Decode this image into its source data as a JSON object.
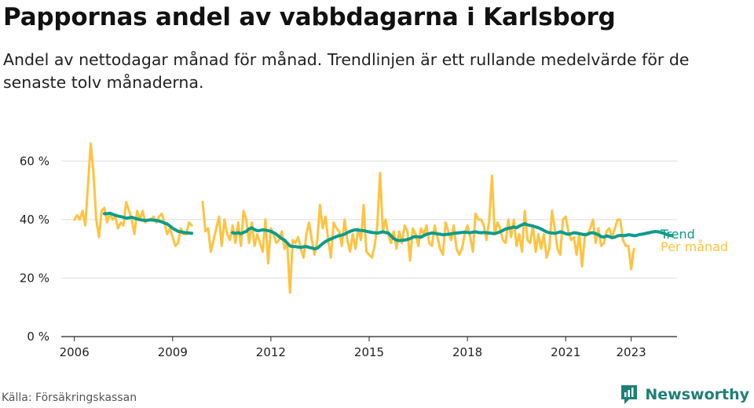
{
  "title": "Pappornas andel av vabbdagarna i Karlsborg",
  "subtitle": "Andel av nettodagar månad för månad. Trendlinjen är ett rullande medelvärde för de senaste tolv månaderna.",
  "source": "Källa: Försäkringskassan",
  "brand": "Newsworthy",
  "colors": {
    "monthly": "#ffc340",
    "trend": "#0d9c8b",
    "grid": "#dddddd",
    "brand": "#1f7f75"
  },
  "chart_data": {
    "type": "line",
    "x_ticks": [
      "2006",
      "2009",
      "2012",
      "2015",
      "2018",
      "2021",
      "2023"
    ],
    "x_tick_values": [
      2006,
      2009,
      2012,
      2015,
      2018,
      2021,
      2023
    ],
    "xlim": [
      2005.6,
      2024.4
    ],
    "y_ticks": [
      "0 %",
      "20 %",
      "40 %",
      "60 %"
    ],
    "y_tick_values": [
      0,
      20,
      40,
      60
    ],
    "ylim": [
      0,
      70
    ],
    "grid": true,
    "series": [
      {
        "name": "Per månad",
        "color": "#ffc340",
        "start": 2006.0,
        "step": 0.0833333,
        "segments": [
          {
            "start_index": 0,
            "values": [
              40,
              41.5,
              40,
              43,
              38,
              52,
              66,
              56,
              40,
              34,
              43,
              44,
              39,
              42,
              40,
              41,
              37,
              39,
              38,
              46,
              43,
              40,
              35,
              43,
              40,
              43,
              39,
              40,
              40,
              41,
              39,
              41,
              42,
              39,
              35,
              37,
              34,
              31,
              32,
              37,
              35,
              35,
              39,
              38
            ]
          },
          {
            "start_index": 47,
            "values": [
              46,
              36,
              37,
              29,
              33,
              37,
              41,
              31,
              40,
              35,
              33,
              38,
              32,
              39,
              31,
              43,
              40,
              32,
              39,
              31,
              35,
              32,
              29,
              40,
              25,
              37,
              35,
              32,
              33,
              36,
              30,
              32,
              15,
              33,
              32,
              34,
              30,
              27,
              35,
              39,
              33,
              28,
              33,
              45,
              37,
              41,
              33,
              27,
              39,
              37,
              36,
              31,
              40,
              33,
              29,
              35,
              30,
              37,
              33,
              45,
              29,
              28,
              27,
              31,
              38,
              56,
              36,
              40,
              35,
              32,
              36,
              30,
              36,
              32,
              38,
              36,
              26,
              37,
              35,
              31,
              37,
              35,
              38,
              32,
              31,
              38,
              34,
              30,
              28,
              39,
              36,
              33,
              38,
              30,
              28,
              30,
              35,
              38,
              34,
              29,
              42,
              40,
              40,
              38,
              33,
              40,
              55,
              35,
              39,
              37,
              33,
              32,
              40,
              34,
              40,
              31,
              35,
              29,
              43,
              33,
              32,
              38,
              29,
              35,
              30,
              35,
              27,
              30,
              43,
              37,
              30,
              28,
              40,
              41,
              36,
              33,
              34,
              28,
              35,
              24,
              34,
              35,
              37,
              40,
              32,
              37,
              31,
              32,
              36,
              37,
              34,
              37,
              40,
              40,
              33,
              31,
              31,
              23,
              30
            ]
          }
        ]
      },
      {
        "name": "Trend",
        "color": "#0d9c8b",
        "start": 2006.0,
        "step": 0.0833333,
        "segments": [
          {
            "start_index": 11,
            "values": [
              42,
              42,
              42.2,
              41.8,
              41.5,
              41.2,
              41,
              40.8,
              40.5,
              40.6,
              40.8,
              40.5,
              40.2,
              40,
              39.8,
              39.7,
              39.8,
              39.9,
              39.8,
              39.7,
              39.5,
              39.2,
              38.8,
              38.5,
              37.8,
              37,
              36.5,
              36,
              35.8,
              35.6,
              35.5,
              35.4,
              35.3
            ]
          },
          {
            "start_index": 58,
            "values": [
              35.5,
              35.3,
              35.5,
              35.2,
              35.6,
              36,
              36.8,
              37.2,
              36.6,
              36.2,
              36.3,
              36.5,
              36.4,
              36.2,
              36,
              35.5,
              35,
              34.2,
              33.5,
              33,
              32,
              31,
              30.8,
              30.8,
              30.6,
              30.5,
              30.7,
              30.8,
              30.5,
              30.3,
              30,
              30.2,
              31,
              31.8,
              32.5,
              33,
              33.4,
              33.8,
              34.2,
              34.5,
              34.7,
              35,
              35.5,
              36,
              36.3,
              36.5,
              36.4,
              36.3,
              36.2,
              36,
              35.8,
              35.6,
              35.5,
              35.4,
              35.6,
              35.8,
              35.6,
              35.4,
              34.5,
              33.5,
              33,
              32.8,
              32.9,
              33,
              33.2,
              33.5,
              34,
              34.2,
              34.1,
              34,
              34.5,
              35,
              35.2,
              35.4,
              35.3,
              35.1,
              35,
              34.8,
              34.9,
              35,
              35.1,
              35.3,
              35.4,
              35.5,
              35.6,
              35.7,
              35.6,
              35.5,
              35.7,
              35.8,
              35.6,
              35.5,
              35.6,
              35.5,
              35.4,
              35.3,
              35.2,
              35.5,
              35.8,
              36.3,
              36.8,
              37,
              37.2,
              37.5,
              37.2,
              37.8,
              38.2,
              38.6,
              38.2,
              38,
              37.8,
              37.5,
              37.2,
              36.8,
              36.3,
              35.8,
              35.5,
              35.4,
              35.3,
              35.5,
              35.8,
              35.6,
              35.2,
              35,
              35.2,
              35.5,
              35.4,
              35.2,
              35,
              34.8,
              35,
              35.4,
              35.5,
              35.2,
              34.8,
              34.2,
              34,
              34.4,
              34.2,
              33.8,
              34,
              34.4,
              34.6,
              34.5,
              34.6,
              34.8,
              34.7,
              34.5,
              34.6,
              34.9,
              35,
              35.2,
              35.4,
              35.6,
              35.8,
              35.9,
              35.8,
              35.6,
              35.3,
              34.9,
              34.6,
              34.5
            ]
          }
        ]
      }
    ]
  }
}
